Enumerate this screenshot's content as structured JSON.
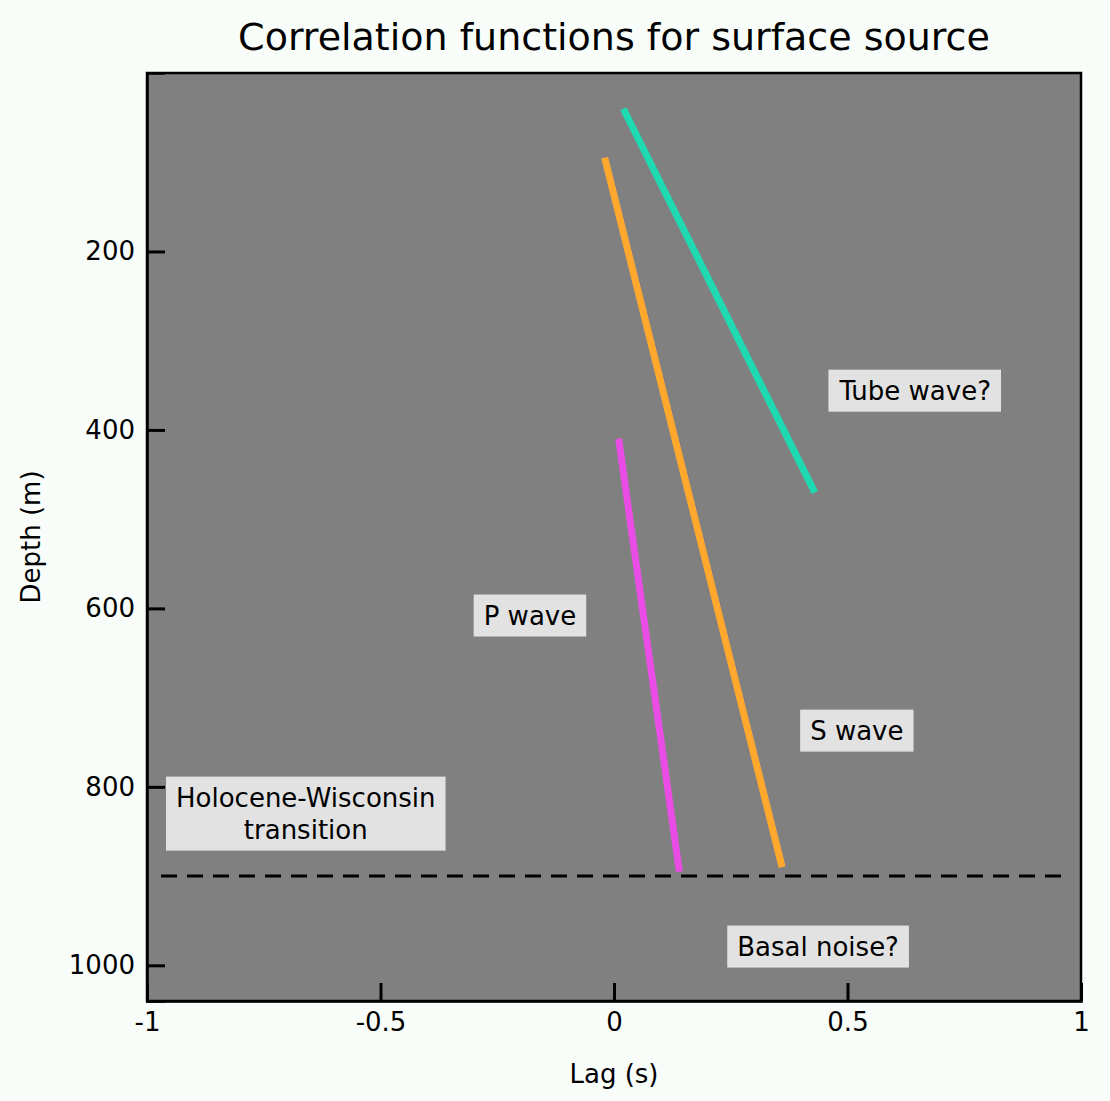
{
  "chart_data": {
    "type": "line",
    "title": "Correlation functions for surface source",
    "x_label": "Lag (s)",
    "y_label": "Depth (m)",
    "xlim": [
      -1,
      1
    ],
    "xticks": [
      -1,
      -0.5,
      0,
      0.5,
      1
    ],
    "ylim": [
      1040,
      0
    ],
    "yticks": [
      200,
      400,
      600,
      800,
      1000
    ],
    "grid": false,
    "series": [
      {
        "color": "#1fd9b0",
        "line_style": "solid",
        "x": [
          0.02,
          0.43
        ],
        "values": [
          40,
          470
        ]
      },
      {
        "color": "#ffa82e",
        "line_style": "solid",
        "x": [
          -0.02,
          0.36
        ],
        "values": [
          95,
          890
        ]
      },
      {
        "color": "#ea4de6",
        "line_style": "solid",
        "x": [
          0.01,
          0.14
        ],
        "values": [
          410,
          895
        ]
      },
      {
        "color": "#000000",
        "line_style": "dashed",
        "x": [
          -0.97,
          0.96
        ],
        "values": [
          900,
          900
        ]
      }
    ],
    "annotations": [
      {
        "text": [
          "Tube wave?"
        ],
        "x": 0.645,
        "y": 356
      },
      {
        "text": [
          "P wave"
        ],
        "x": -0.18,
        "y": 608
      },
      {
        "text": [
          "S wave"
        ],
        "x": 0.52,
        "y": 737
      },
      {
        "text": [
          "Holocene-Wisconsin",
          "transition"
        ],
        "x": -0.66,
        "y": 830
      },
      {
        "text": [
          "Basal noise?"
        ],
        "x": 0.437,
        "y": 979
      }
    ]
  }
}
